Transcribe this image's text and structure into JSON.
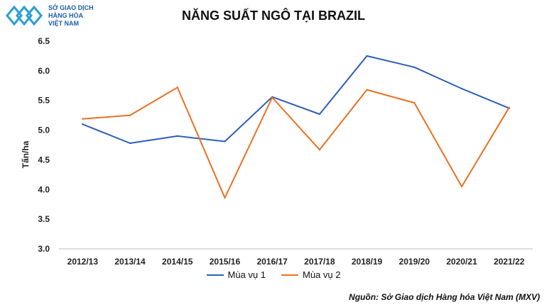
{
  "header": {
    "logo_line1": "SỞ GIAO DỊCH",
    "logo_line2": "HÀNG HÓA",
    "logo_line3": "VIỆT NAM"
  },
  "source": "Nguồn: Sở Giao dịch Hàng hóa Việt Nam (MXV)",
  "colors": {
    "series1": "#2e5fb7",
    "series2": "#ee6f20",
    "logo": "#2a9fd6"
  },
  "chart_data": {
    "type": "line",
    "title": "NĂNG SUẤT NGÔ TẠI BRAZIL",
    "xlabel": "",
    "ylabel": "Tấn/ha",
    "ylim": [
      3.0,
      6.5
    ],
    "yticks": [
      "3.0",
      "3.5",
      "4.0",
      "4.5",
      "5.0",
      "5.5",
      "6.0",
      "6.5"
    ],
    "grid": false,
    "legend": "bottom",
    "categories": [
      "2012/13",
      "2013/14",
      "2014/15",
      "2015/16",
      "2016/17",
      "2017/18",
      "2018/19",
      "2019/20",
      "2020/21",
      "2021/22"
    ],
    "series": [
      {
        "name": "Mùa vụ 1",
        "values": [
          5.1,
          4.78,
          4.9,
          4.81,
          5.56,
          5.27,
          6.25,
          6.06,
          5.7,
          5.37
        ]
      },
      {
        "name": "Mùa vụ 2",
        "values": [
          5.19,
          5.25,
          5.72,
          3.86,
          5.55,
          4.67,
          5.68,
          5.46,
          4.05,
          5.38
        ]
      }
    ]
  }
}
